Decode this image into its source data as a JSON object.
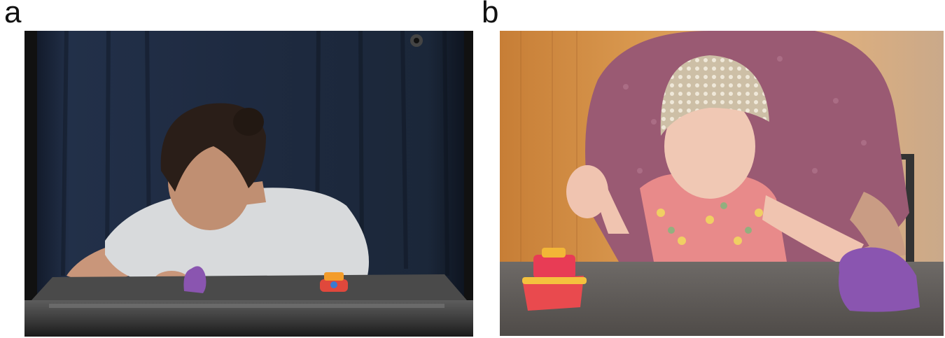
{
  "figure": {
    "panels": [
      {
        "label": "a",
        "scene": "adult-demonstrating-toy-pressing-on-table"
      },
      {
        "label": "b",
        "scene": "infant-with-eeg-cap-on-parent-lap-reaching-toy"
      }
    ],
    "colors": {
      "curtain": "#1f2a3d",
      "table_dark": "#3a3a3a",
      "wood_wall": "#c98a42",
      "shirt_pink": "#9a5a73",
      "toy_purple": "#8a55b0",
      "toy_boat_red": "#e0483c"
    }
  }
}
